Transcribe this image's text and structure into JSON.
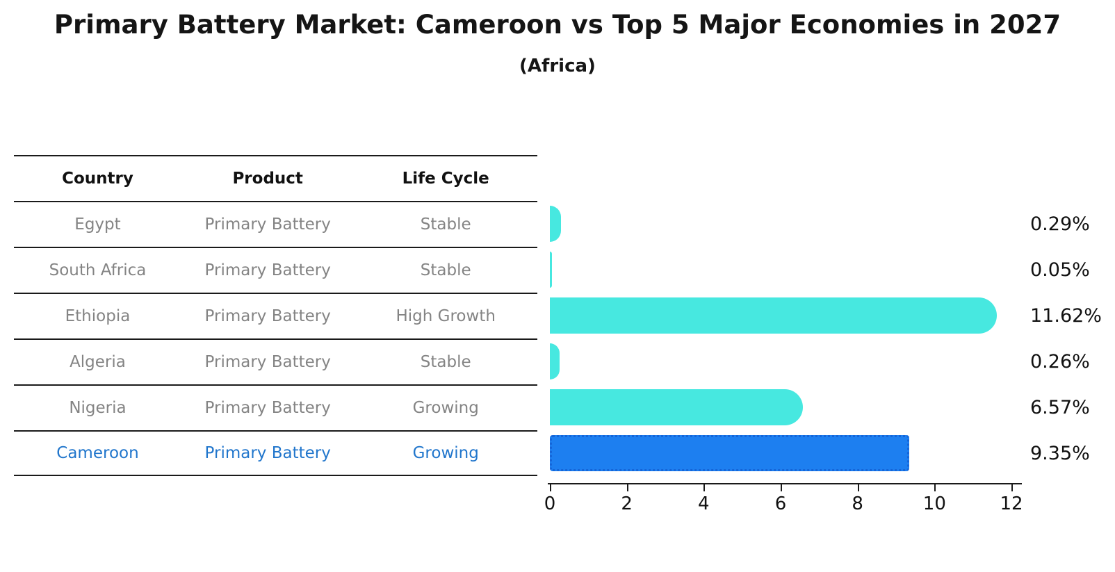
{
  "title": "Primary Battery Market: Cameroon vs Top 5 Major Economies in 2027",
  "subtitle": "(Africa)",
  "table": {
    "headers": [
      "Country",
      "Product",
      "Life Cycle"
    ],
    "rows": [
      {
        "country": "Egypt",
        "product": "Primary Battery",
        "life_cycle": "Stable",
        "highlight": false
      },
      {
        "country": "South Africa",
        "product": "Primary Battery",
        "life_cycle": "Stable",
        "highlight": false
      },
      {
        "country": "Ethiopia",
        "product": "Primary Battery",
        "life_cycle": "High Growth",
        "highlight": false
      },
      {
        "country": "Algeria",
        "product": "Primary Battery",
        "life_cycle": "Stable",
        "highlight": false
      },
      {
        "country": "Nigeria",
        "product": "Primary Battery",
        "life_cycle": "Growing",
        "highlight": false
      },
      {
        "country": "Cameroon",
        "product": "Primary Battery",
        "life_cycle": "Growing",
        "highlight": true
      }
    ]
  },
  "chart_data": {
    "type": "bar",
    "orientation": "horizontal",
    "title": "Primary Battery Market: Cameroon vs Top 5 Major Economies in 2027",
    "subtitle": "(Africa)",
    "categories": [
      "Egypt",
      "South Africa",
      "Ethiopia",
      "Algeria",
      "Nigeria",
      "Cameroon"
    ],
    "values": [
      0.29,
      0.05,
      11.62,
      0.26,
      6.57,
      9.35
    ],
    "value_labels": [
      "0.29%",
      "0.05%",
      "11.62%",
      "0.26%",
      "6.57%",
      "9.35%"
    ],
    "xlim": [
      0,
      12
    ],
    "x_ticks": [
      0,
      2,
      4,
      6,
      8,
      10,
      12
    ],
    "grid": false,
    "legend": "none",
    "highlight_index": 5,
    "bar_color": "#47e8e0",
    "highlight_bar_color": "#1d7ff0",
    "highlight_bar_border_color": "#1565d8",
    "highlight_text_color": "#2176cc"
  }
}
